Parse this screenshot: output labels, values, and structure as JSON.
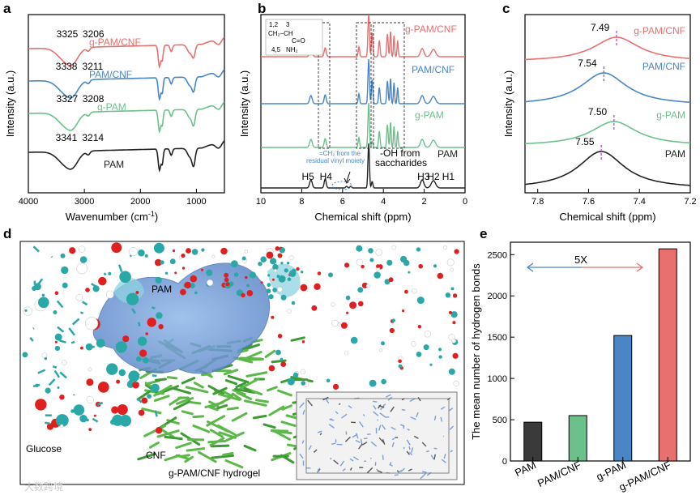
{
  "panel_letters": {
    "a": "a",
    "b": "b",
    "c": "c",
    "d": "d",
    "e": "e"
  },
  "colors": {
    "red": "#e8706f",
    "blue": "#4a86c5",
    "green": "#6cc18b",
    "black": "#222222",
    "purple": "#b84fd1",
    "dash": "#333333"
  },
  "chart_data": [
    {
      "panel": "a",
      "type": "line",
      "title": "",
      "xlabel_main": "Wavenumber (cm",
      "xlabel_sup": "-1",
      "xlabel_end": ")",
      "ylabel": "Intensity (a.u.)",
      "xlim": [
        4000,
        500
      ],
      "xticks": [
        "4000",
        "3000",
        "2000",
        "1000"
      ],
      "xtick_values": [
        4000,
        3000,
        2000,
        1000
      ],
      "series": [
        {
          "name": "g-PAM/CNF",
          "color": "#e8706f",
          "peaks": [
            "3325",
            "3206"
          ],
          "peak_values": [
            3325,
            3206
          ]
        },
        {
          "name": "PAM/CNF",
          "color": "#4a86c5",
          "peaks": [
            "3338",
            "3211"
          ],
          "peak_values": [
            3338,
            3211
          ]
        },
        {
          "name": "g-PAM",
          "color": "#6cc18b",
          "peaks": [
            "3327",
            "3208"
          ],
          "peak_values": [
            3327,
            3208
          ]
        },
        {
          "name": "PAM",
          "color": "#222222",
          "peaks": [
            "3341",
            "3214"
          ],
          "peak_values": [
            3341,
            3214
          ]
        }
      ]
    },
    {
      "panel": "b",
      "type": "line",
      "xlabel": "Chemical shift (ppm)",
      "ylabel": "Intensity (a.u.)",
      "xlim": [
        10,
        0
      ],
      "xticks": [
        "10",
        "8",
        "6",
        "4",
        "2",
        "0"
      ],
      "xtick_values": [
        10,
        8,
        6,
        4,
        2,
        0
      ],
      "series": [
        {
          "name": "g-PAM/CNF",
          "color": "#e8706f"
        },
        {
          "name": "PAM/CNF",
          "color": "#4a86c5"
        },
        {
          "name": "g-PAM",
          "color": "#6cc18b"
        },
        {
          "name": "PAM",
          "color": "#222222"
        }
      ],
      "peak_labels": [
        "H5",
        "H4",
        "H3",
        "H2",
        "H1"
      ],
      "peak_positions": [
        7.6,
        6.8,
        2.1,
        1.5,
        1.2
      ],
      "annotation_vinyl": [
        "=CH₂ from the",
        "residual vinyl moiety"
      ],
      "annotation_oh": [
        "-OH from",
        "saccharides"
      ],
      "inset_labels": [
        "1,2",
        "3",
        "4,5",
        "C=O",
        "NH₂",
        "CH₂–CH"
      ]
    },
    {
      "panel": "c",
      "type": "line",
      "xlabel": "Chemical shift (ppm)",
      "ylabel": "Intensity (a.u.)",
      "xlim": [
        7.85,
        7.2
      ],
      "xticks": [
        "7.8",
        "7.6",
        "7.4",
        "7.2"
      ],
      "xtick_values": [
        7.8,
        7.6,
        7.4,
        7.2
      ],
      "series": [
        {
          "name": "g-PAM/CNF",
          "color": "#e8706f",
          "peak": "7.49",
          "peak_value": 7.49
        },
        {
          "name": "PAM/CNF",
          "color": "#4a86c5",
          "peak": "7.54",
          "peak_value": 7.54
        },
        {
          "name": "g-PAM",
          "color": "#6cc18b",
          "peak": "7.50",
          "peak_value": 7.5
        },
        {
          "name": "PAM",
          "color": "#222222",
          "peak": "7.55",
          "peak_value": 7.55
        }
      ]
    },
    {
      "panel": "e",
      "type": "bar",
      "ylabel": "The mean number of hydrogen bonds",
      "categories": [
        "PAM",
        "PAM/CNF",
        "g-PAM",
        "g-PAM/CNF"
      ],
      "values": [
        470,
        550,
        1520,
        2570
      ],
      "colors": [
        "#3a3a3a",
        "#6cc18b",
        "#4a86c5",
        "#e8706f"
      ],
      "ylim": [
        0,
        2650
      ],
      "yticks": [
        "0",
        "500",
        "1000",
        "1500",
        "2000",
        "2500"
      ],
      "ytick_values": [
        0,
        500,
        1000,
        1500,
        2000,
        2500
      ],
      "annotation": "5X"
    }
  ],
  "panel_d": {
    "labels": {
      "pam": "PAM",
      "glucose": "Glucose",
      "cnf": "CNF",
      "hydrogel": "g-PAM/CNF hydrogel"
    }
  },
  "watermark": "大数跨境"
}
